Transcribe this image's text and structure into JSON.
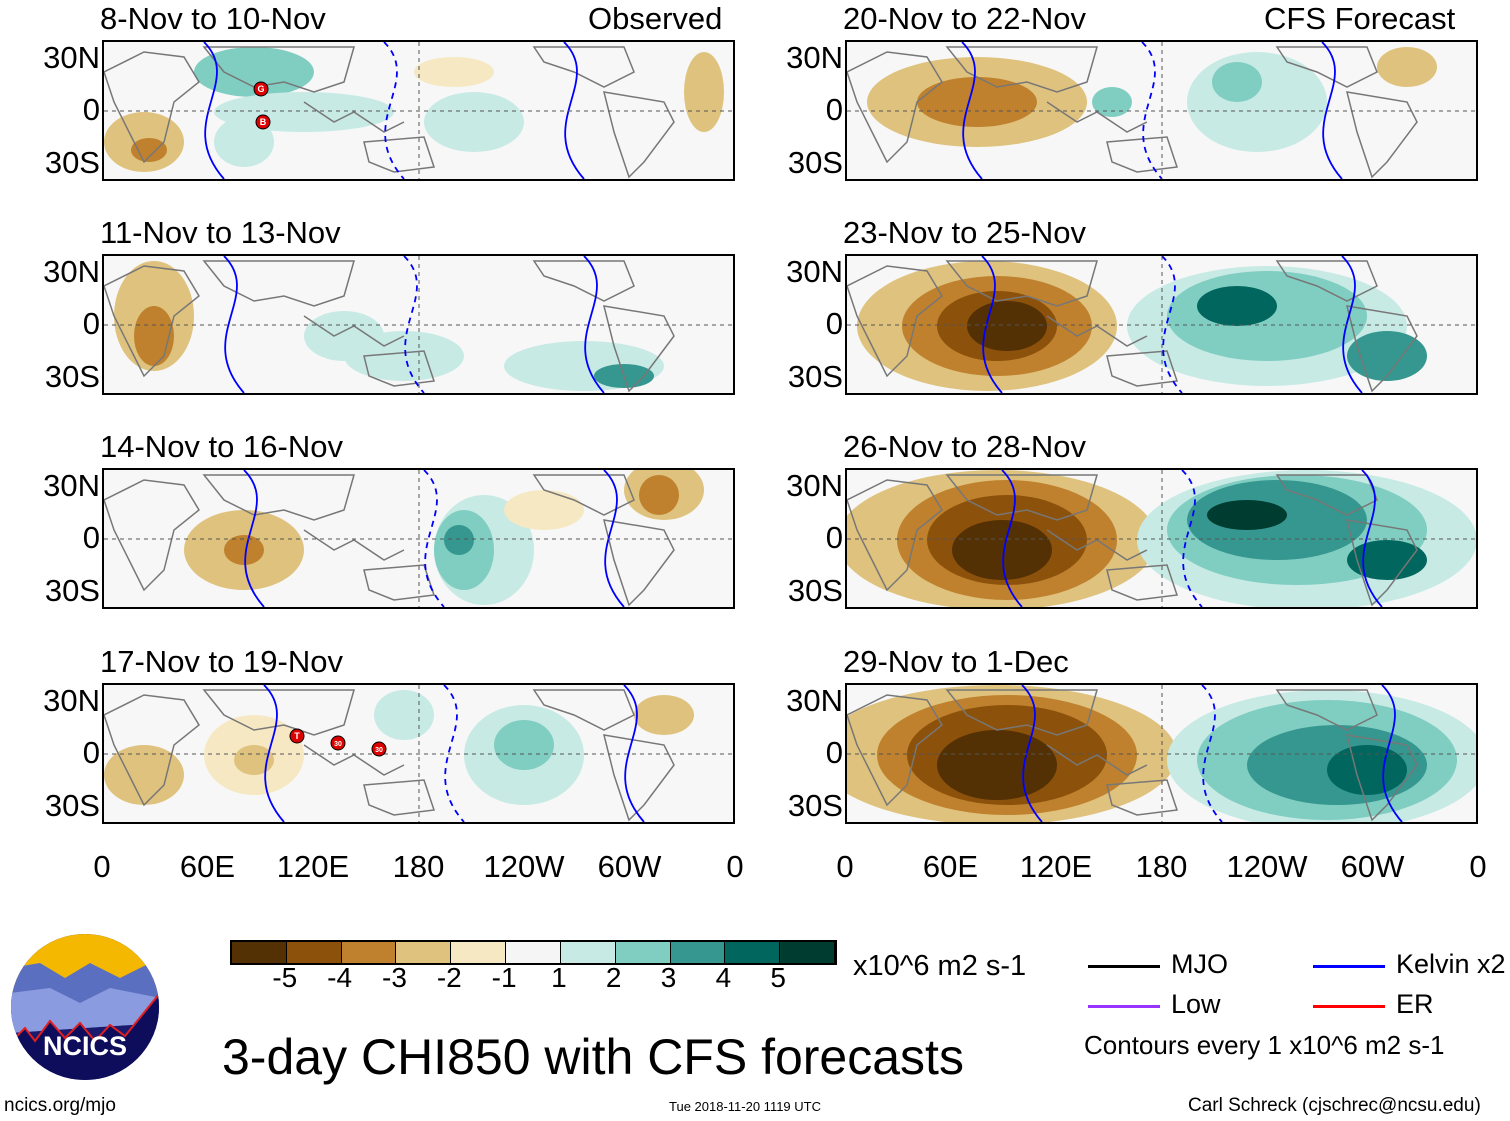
{
  "header": {
    "left_label": "Observed",
    "right_label": "CFS Forecast"
  },
  "panels": {
    "observed": [
      {
        "title": "8-Nov to 10-Nov",
        "storms": [
          "G",
          "B"
        ]
      },
      {
        "title": "11-Nov to 13-Nov",
        "storms": []
      },
      {
        "title": "14-Nov to 16-Nov",
        "storms": []
      },
      {
        "title": "17-Nov to 19-Nov",
        "storms": [
          "T",
          "30",
          "30"
        ]
      }
    ],
    "forecast": [
      {
        "title": "20-Nov to 22-Nov"
      },
      {
        "title": "23-Nov to 25-Nov"
      },
      {
        "title": "26-Nov to 28-Nov"
      },
      {
        "title": "29-Nov to 1-Dec"
      }
    ]
  },
  "axes": {
    "lat_labels": [
      "30N",
      "0",
      "30S"
    ],
    "lon_labels": [
      "0",
      "60E",
      "120E",
      "180",
      "120W",
      "60W",
      "0"
    ]
  },
  "colorbar": {
    "colors": [
      "#543005",
      "#8c510a",
      "#bf812d",
      "#dfc27d",
      "#f6e8c3",
      "#f5f5f5",
      "#c7eae5",
      "#80cdc1",
      "#35978f",
      "#01665e",
      "#003c30"
    ],
    "labels": [
      "-5",
      "-4",
      "-3",
      "-2",
      "-1",
      "1",
      "2",
      "3",
      "4",
      "5"
    ],
    "units": "x10^6 m2 s-1"
  },
  "legend": {
    "items": [
      {
        "label": "MJO",
        "color": "#000000"
      },
      {
        "label": "Kelvin x2",
        "color": "#0000ff"
      },
      {
        "label": "Low",
        "color": "#9933ff"
      },
      {
        "label": "ER",
        "color": "#ff0000"
      }
    ],
    "contour_note": "Contours every 1 x10^6 m2 s-1"
  },
  "title": "3-day CHI850 with CFS forecasts",
  "footer": {
    "site": "ncics.org/mjo",
    "timestamp": "Tue 2018-11-20 1119 UTC",
    "author": "Carl Schreck (cjschrec@ncsu.edu)",
    "logo_text": "NCICS"
  }
}
